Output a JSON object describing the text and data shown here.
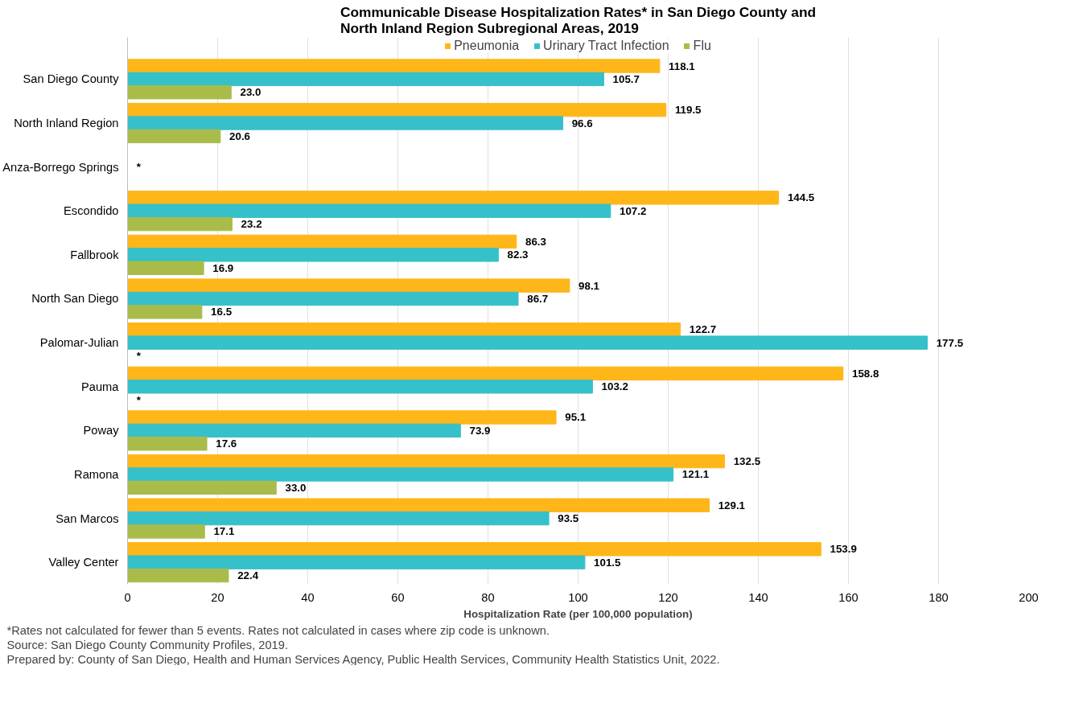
{
  "chart_data": {
    "type": "bar",
    "orientation": "horizontal",
    "title": "Communicable Disease Hospitalization Rates* in San Diego County and\nNorth Inland Region Subregional Areas, 2019",
    "xlabel": "Hospitalization Rate (per 100,000 population)",
    "categories": [
      "San Diego County",
      "North Inland Region",
      "Anza-Borrego Springs",
      "Escondido",
      "Fallbrook",
      "North San Diego",
      "Palomar-Julian",
      "Pauma",
      "Poway",
      "Ramona",
      "San Marcos",
      "Valley Center"
    ],
    "series": [
      {
        "name": "Pneumonia",
        "color": "#ffb619",
        "values": [
          118.1,
          119.5,
          null,
          144.5,
          86.3,
          98.1,
          122.7,
          158.8,
          95.1,
          132.5,
          129.1,
          153.9
        ],
        "value_labels": [
          "118.1",
          "119.5",
          null,
          "144.5",
          "86.3",
          "98.1",
          "122.7",
          "158.8",
          "95.1",
          "132.5",
          "129.1",
          "153.9"
        ]
      },
      {
        "name": "Urinary Tract Infection",
        "color": "#36c0c9",
        "values": [
          105.7,
          96.6,
          null,
          107.2,
          82.3,
          86.7,
          177.5,
          103.2,
          73.9,
          121.1,
          93.5,
          101.5
        ],
        "value_labels": [
          "105.7",
          "96.6",
          "*",
          "107.2",
          "82.3",
          "86.7",
          "177.5",
          "103.2",
          "73.9",
          "121.1",
          "93.5",
          "101.5"
        ]
      },
      {
        "name": "Flu",
        "color": "#a9bc4a",
        "values": [
          23.0,
          20.6,
          null,
          23.2,
          16.9,
          16.5,
          null,
          null,
          17.6,
          33.0,
          17.1,
          22.4
        ],
        "value_labels": [
          "23.0",
          "20.6",
          null,
          "23.2",
          "16.9",
          "16.5",
          "*",
          "*",
          "17.6",
          "33.0",
          "17.1",
          "22.4"
        ]
      }
    ],
    "xlim": [
      0,
      200
    ],
    "xticks": [
      0,
      20,
      40,
      60,
      80,
      100,
      120,
      140,
      160,
      180,
      200
    ],
    "grid": "x",
    "legend": "top",
    "annotations": [
      "*Rates not calculated for fewer than 5 events. Rates not calculated in cases where zip code is unknown.",
      "Source: San Diego County Community Profiles, 2019.",
      "Prepared by: County of San Diego, Health and Human Services Agency, Public Health Services, Community Health Statistics Unit, 2022."
    ]
  }
}
